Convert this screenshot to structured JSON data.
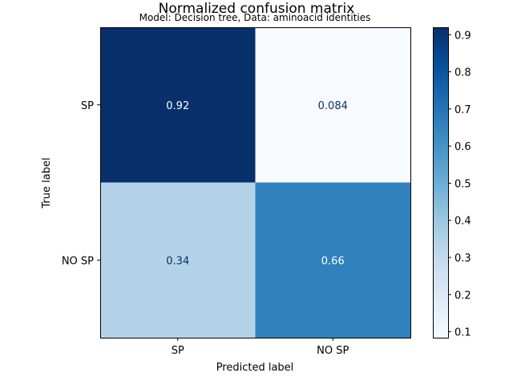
{
  "chart_data": {
    "type": "heatmap",
    "title": "Normalized confusion matrix",
    "subtitle": "Model: Decision tree, Data: aminoacid identities",
    "xlabel": "Predicted label",
    "ylabel": "True label",
    "x_categories": [
      "SP",
      "NO SP"
    ],
    "y_categories": [
      "SP",
      "NO SP"
    ],
    "values": [
      [
        0.92,
        0.084
      ],
      [
        0.34,
        0.66
      ]
    ],
    "value_labels": [
      [
        "0.92",
        "0.084"
      ],
      [
        "0.34",
        "0.66"
      ]
    ],
    "colormap": "Blues",
    "colorbar": {
      "range": [
        0.084,
        0.92
      ],
      "ticks": [
        0.1,
        0.2,
        0.3,
        0.4,
        0.5,
        0.6,
        0.7,
        0.8,
        0.9
      ],
      "tick_labels": [
        "0.1",
        "0.2",
        "0.3",
        "0.4",
        "0.5",
        "0.6",
        "0.7",
        "0.8",
        "0.9"
      ]
    },
    "grid": false,
    "colors": {
      "low": "#f7fbff",
      "high": "#08306b",
      "text_dark": "#08306b",
      "text_light": "#ffffff"
    }
  }
}
